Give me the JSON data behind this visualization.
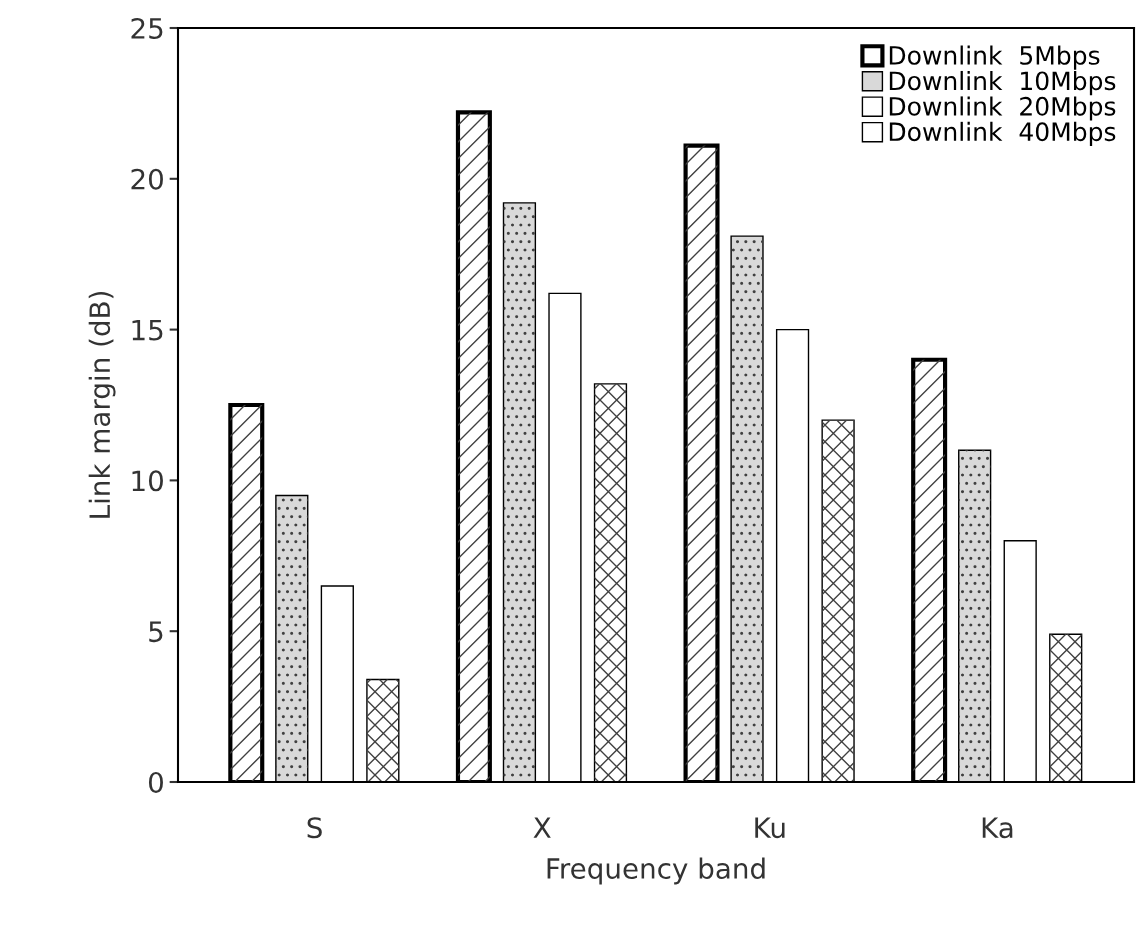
{
  "chart_data": {
    "type": "bar",
    "xlabel": "Frequency band",
    "ylabel": "Link margin (dB)",
    "categories": [
      "S",
      "X",
      "Ku",
      "Ka"
    ],
    "series": [
      {
        "name": "Downlink  5Mbps",
        "color": "#ffffff",
        "values": [
          12.5,
          22.2,
          21.1,
          14.0
        ]
      },
      {
        "name": "Downlink  10Mbps",
        "color": "#d9d9d9",
        "values": [
          9.5,
          19.2,
          18.1,
          11.0
        ]
      },
      {
        "name": "Downlink  20Mbps",
        "color": "#ffffff",
        "values": [
          6.5,
          16.2,
          15.0,
          8.0
        ]
      },
      {
        "name": "Downlink  40Mbps",
        "color": "#ffffff",
        "values": [
          3.4,
          13.2,
          12.0,
          4.9
        ]
      }
    ],
    "ylim": [
      0,
      25
    ],
    "yticks": [
      0,
      5,
      10,
      15,
      20,
      25
    ],
    "grid": false,
    "legend": "top right"
  }
}
